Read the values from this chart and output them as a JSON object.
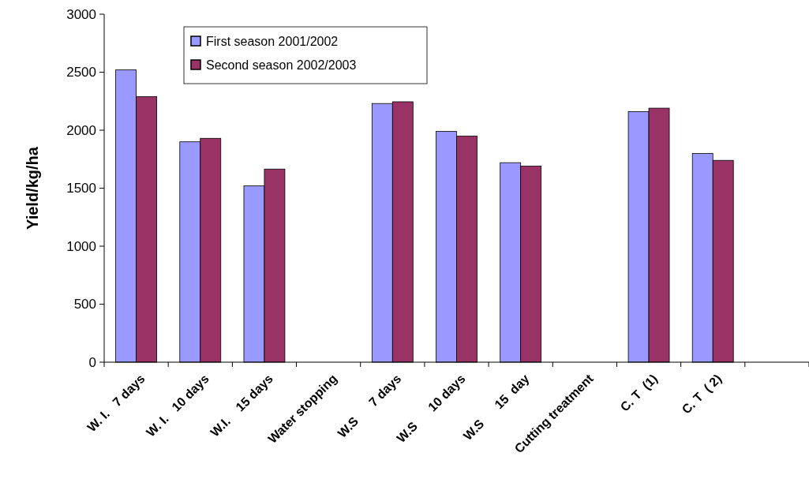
{
  "chart_data": {
    "type": "bar",
    "ylabel": "Yield/kg/ha",
    "categories": [
      "W. I.   7 days",
      "W. I.   10 days",
      "W.I.    15 days",
      "Water stopping",
      "W.S      7 days",
      "W.S      10 days",
      "W.S      15  day",
      "Cutting treatment",
      "C. T  (1)",
      "C. T  ( 2)",
      null
    ],
    "series": [
      {
        "name": "First season 2001/2002",
        "color": "#9999ff",
        "values": [
          2520,
          1900,
          1520,
          null,
          2230,
          1990,
          1720,
          null,
          2160,
          1800,
          null
        ]
      },
      {
        "name": "Second season 2002/2003",
        "color": "#993366",
        "values": [
          2290,
          1930,
          1665,
          null,
          2245,
          1950,
          1690,
          null,
          2190,
          1740,
          null
        ]
      }
    ],
    "ylim": [
      0,
      3000
    ],
    "yticks": [
      0,
      500,
      1000,
      1500,
      2000,
      2500,
      3000
    ],
    "grid": false,
    "legend": "top left"
  }
}
